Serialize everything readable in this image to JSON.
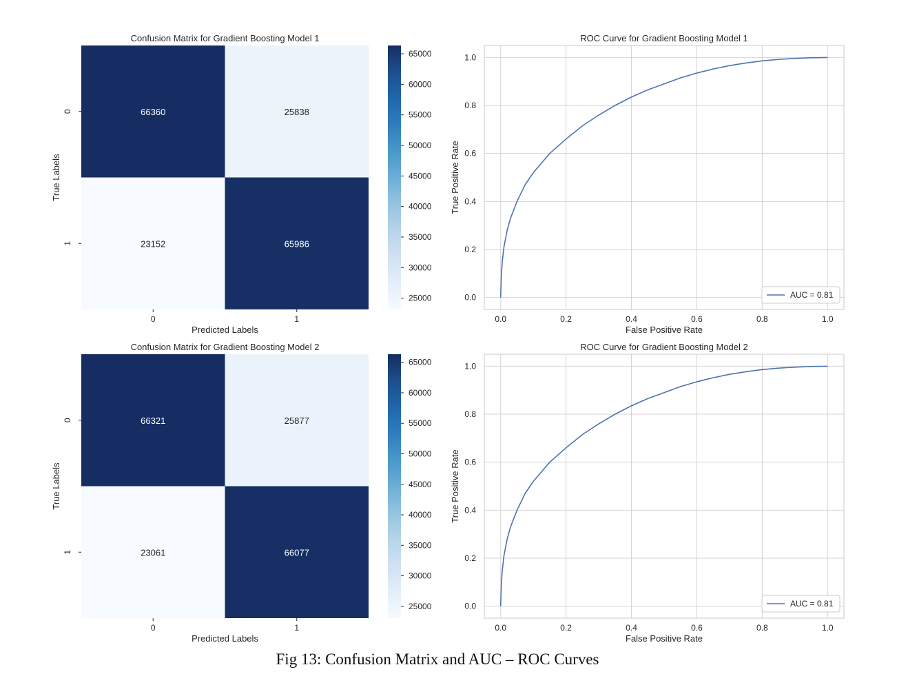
{
  "figure": {
    "caption": "Fig 13: Confusion Matrix and AUC – ROC Curves"
  },
  "colors": {
    "cmap_low": "#f7fbff",
    "cmap_high": "#152d62",
    "roc_line": "#4c72b0",
    "grid": "#d3d3d3",
    "annot_dark_text": "#262626",
    "annot_light_text": "#ffffff"
  },
  "chart_data": [
    {
      "type": "heatmap",
      "title": "Confusion Matrix for Gradient Boosting Model 1",
      "xlabel": "Predicted Labels",
      "ylabel": "True Labels",
      "x_categories": [
        "0",
        "1"
      ],
      "y_categories": [
        "0",
        "1"
      ],
      "values": [
        [
          66360,
          25838
        ],
        [
          23152,
          65986
        ]
      ],
      "colorbar": {
        "range": [
          23152,
          66360
        ],
        "ticks": [
          "25000",
          "30000",
          "35000",
          "40000",
          "45000",
          "50000",
          "55000",
          "60000",
          "65000"
        ]
      }
    },
    {
      "type": "line",
      "title": "ROC Curve for Gradient Boosting Model 1",
      "xlabel": "False Positive Rate",
      "ylabel": "True Positive Rate",
      "xlim": [
        -0.05,
        1.05
      ],
      "ylim": [
        -0.05,
        1.05
      ],
      "xticks": [
        "0.0",
        "0.2",
        "0.4",
        "0.6",
        "0.8",
        "1.0"
      ],
      "yticks": [
        "0.0",
        "0.2",
        "0.4",
        "0.6",
        "0.8",
        "1.0"
      ],
      "grid": true,
      "legend_position": "lower-right",
      "series": [
        {
          "name": "AUC = 0.81",
          "x": [
            0,
            0.002,
            0.005,
            0.01,
            0.02,
            0.03,
            0.05,
            0.075,
            0.1,
            0.15,
            0.2,
            0.25,
            0.3,
            0.35,
            0.4,
            0.45,
            0.5,
            0.55,
            0.6,
            0.65,
            0.7,
            0.75,
            0.8,
            0.85,
            0.9,
            0.95,
            1.0
          ],
          "y": [
            0,
            0.09,
            0.15,
            0.21,
            0.28,
            0.33,
            0.4,
            0.47,
            0.52,
            0.6,
            0.66,
            0.715,
            0.76,
            0.8,
            0.835,
            0.865,
            0.89,
            0.915,
            0.935,
            0.952,
            0.966,
            0.977,
            0.986,
            0.992,
            0.996,
            0.999,
            1.0
          ]
        }
      ]
    },
    {
      "type": "heatmap",
      "title": "Confusion Matrix for Gradient Boosting Model 2",
      "xlabel": "Predicted Labels",
      "ylabel": "True Labels",
      "x_categories": [
        "0",
        "1"
      ],
      "y_categories": [
        "0",
        "1"
      ],
      "values": [
        [
          66321,
          25877
        ],
        [
          23061,
          66077
        ]
      ],
      "colorbar": {
        "range": [
          23061,
          66321
        ],
        "ticks": [
          "25000",
          "30000",
          "35000",
          "40000",
          "45000",
          "50000",
          "55000",
          "60000",
          "65000"
        ]
      }
    },
    {
      "type": "line",
      "title": "ROC Curve for Gradient Boosting Model 2",
      "xlabel": "False Positive Rate",
      "ylabel": "True Positive Rate",
      "xlim": [
        -0.05,
        1.05
      ],
      "ylim": [
        -0.05,
        1.05
      ],
      "xticks": [
        "0.0",
        "0.2",
        "0.4",
        "0.6",
        "0.8",
        "1.0"
      ],
      "yticks": [
        "0.0",
        "0.2",
        "0.4",
        "0.6",
        "0.8",
        "1.0"
      ],
      "grid": true,
      "legend_position": "lower-right",
      "series": [
        {
          "name": "AUC = 0.81",
          "x": [
            0,
            0.002,
            0.005,
            0.01,
            0.02,
            0.03,
            0.05,
            0.075,
            0.1,
            0.15,
            0.2,
            0.25,
            0.3,
            0.35,
            0.4,
            0.45,
            0.5,
            0.55,
            0.6,
            0.65,
            0.7,
            0.75,
            0.8,
            0.85,
            0.9,
            0.95,
            1.0
          ],
          "y": [
            0,
            0.09,
            0.15,
            0.21,
            0.28,
            0.33,
            0.4,
            0.47,
            0.52,
            0.6,
            0.66,
            0.715,
            0.76,
            0.8,
            0.835,
            0.865,
            0.89,
            0.915,
            0.935,
            0.952,
            0.966,
            0.977,
            0.986,
            0.992,
            0.996,
            0.999,
            1.0
          ]
        }
      ]
    }
  ]
}
